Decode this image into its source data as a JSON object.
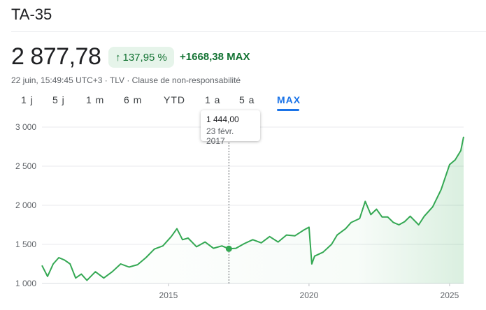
{
  "header": {
    "title": "TA-35",
    "price": "2 877,78",
    "change_pct": "137,95 %",
    "change_abs": "+1668,38 MAX",
    "meta": "22 juin, 15:49:45 UTC+3 · TLV · Clause de non-responsabilité"
  },
  "ranges": [
    "1 j",
    "5 j",
    "1 m",
    "6 m",
    "YTD",
    "1 a",
    "5 a",
    "MAX"
  ],
  "active_range": "MAX",
  "tooltip": {
    "value": "1 444,00",
    "date": "23 févr. 2017"
  },
  "colors": {
    "line": "#34a853",
    "accent": "#1a73e8",
    "positive": "#137333",
    "badge_bg": "#e6f4ea"
  },
  "chart_data": {
    "type": "line",
    "x_tick_labels": [
      "2015",
      "2020",
      "2025"
    ],
    "y_tick_labels": [
      "1 000",
      "1 500",
      "2 000",
      "2 500",
      "3 000"
    ],
    "y_ticks": [
      1000,
      1500,
      2000,
      2500,
      3000
    ],
    "x_ticks": [
      2015,
      2020,
      2025
    ],
    "xlim": [
      2010.5,
      2025.5
    ],
    "ylim": [
      1000,
      3000
    ],
    "grid": true,
    "highlight": {
      "x": 2017.15,
      "y": 1444
    },
    "x": [
      2010.5,
      2010.7,
      2010.9,
      2011.1,
      2011.3,
      2011.5,
      2011.7,
      2011.9,
      2012.1,
      2012.4,
      2012.7,
      2013.0,
      2013.3,
      2013.6,
      2013.9,
      2014.2,
      2014.5,
      2014.8,
      2015.1,
      2015.3,
      2015.5,
      2015.7,
      2016.0,
      2016.3,
      2016.6,
      2016.9,
      2017.15,
      2017.4,
      2017.7,
      2018.0,
      2018.3,
      2018.6,
      2018.9,
      2019.2,
      2019.5,
      2019.8,
      2020.0,
      2020.1,
      2020.2,
      2020.5,
      2020.8,
      2021.0,
      2021.3,
      2021.5,
      2021.8,
      2022.0,
      2022.2,
      2022.4,
      2022.6,
      2022.8,
      2023.0,
      2023.2,
      2023.4,
      2023.6,
      2023.9,
      2024.1,
      2024.4,
      2024.7,
      2025.0,
      2025.2,
      2025.4,
      2025.5
    ],
    "y": [
      1230,
      1090,
      1250,
      1330,
      1300,
      1250,
      1070,
      1120,
      1040,
      1150,
      1070,
      1150,
      1250,
      1210,
      1240,
      1330,
      1440,
      1480,
      1600,
      1700,
      1560,
      1580,
      1470,
      1530,
      1450,
      1480,
      1444,
      1450,
      1510,
      1560,
      1520,
      1600,
      1530,
      1620,
      1610,
      1680,
      1720,
      1250,
      1350,
      1400,
      1500,
      1620,
      1700,
      1780,
      1830,
      2050,
      1880,
      1950,
      1850,
      1850,
      1780,
      1750,
      1790,
      1860,
      1750,
      1860,
      1980,
      2200,
      2520,
      2580,
      2700,
      2877
    ]
  }
}
